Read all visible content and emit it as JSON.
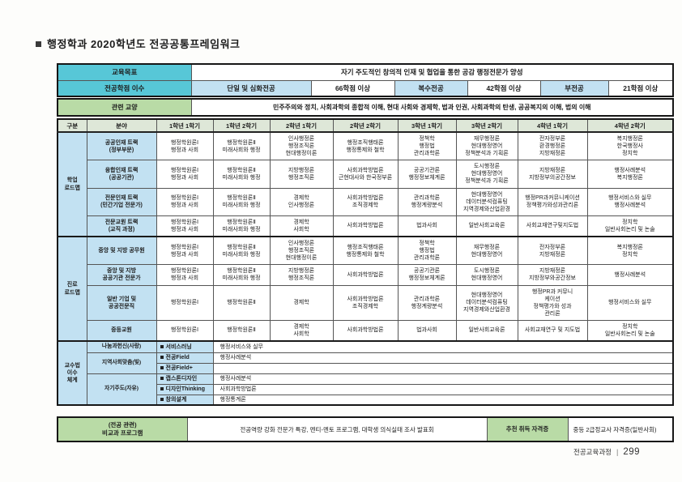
{
  "title": "행정학과 2020학년도 전공공통프레임워크",
  "colors": {
    "cyan": "#57c7d7",
    "light_blue": "#c2e1f2",
    "light_green": "#b9dba6",
    "header_green": "#dee7d8"
  },
  "goal": {
    "objective_label": "교육목표",
    "objective_value": "자기 주도적인 창의적 인재 및 협업을 통한 공감 행정전문가 양성",
    "credits_label": "전공학점 이수",
    "credit_cells": [
      {
        "label": "단일 및 심화전공",
        "value": "66학점 이상"
      },
      {
        "label": "복수전공",
        "value": "42학점 이상"
      },
      {
        "label": "부전공",
        "value": "21학점 이상"
      }
    ]
  },
  "related": {
    "label": "관련 교양",
    "value": "민주주의와 정치, 사회과학의 종합적 이해, 현대 사회와 경제학, 법과 인권, 사회과학의 탄생, 공공복지의 이해, 법의 이해"
  },
  "matrix": {
    "headers": [
      "구분",
      "분야",
      "1학년 1학기",
      "1학년 2학기",
      "2학년 1학기",
      "2학년 2학기",
      "3학년 1학기",
      "3학년 2학기",
      "4학년 1학기",
      "4학년 2학기"
    ],
    "sections": [
      {
        "group": [
          "학업",
          "로드맵"
        ],
        "rows": [
          {
            "field": [
              "공공인재 트랙",
              "(정부부문)"
            ],
            "cells": [
              [
                "행정학원론Ⅰ",
                "행정과 사회"
              ],
              [
                "행정학원론Ⅱ",
                "미래사회와 행정"
              ],
              [
                "인사행정론",
                "행정조직론",
                "현대행정이론"
              ],
              [
                "행정조직행태론",
                "행정통제와 철학"
              ],
              [
                "정책학",
                "행정법",
                "관리과학론"
              ],
              [
                "재무행정론",
                "현대행정영어",
                "정책분석과 기획론"
              ],
              [
                "전자정부론",
                "환경행정론",
                "지방재정론"
              ],
              [
                "복지행정론",
                "한국행정사",
                "정치학"
              ]
            ]
          },
          {
            "field": [
              "융합인재 트랙",
              "(공공기관)"
            ],
            "cells": [
              [
                "행정학원론Ⅰ",
                "행정과 사회"
              ],
              [
                "행정학원론Ⅱ",
                "미래사회와 행정"
              ],
              [
                "지방행정론",
                "행정조직론"
              ],
              [
                "사회과학방법론",
                "근현대사와 한국정부론"
              ],
              [
                "공공기관론",
                "행정정보체계론"
              ],
              [
                "도시행정론",
                "현대행정영어",
                "정책분석과 기획론"
              ],
              [
                "지방재정론",
                "지방정부의공간정보"
              ],
              [
                "행정사례분석",
                "복지행정론"
              ]
            ]
          },
          {
            "field": [
              "전문인재 트랙",
              "(민간기업 전문가)"
            ],
            "cells": [
              [
                "행정학원론Ⅰ",
                "행정과 사회"
              ],
              [
                "행정학원론Ⅱ",
                "미래사회와 행정"
              ],
              [
                "경제학",
                "인사행정론"
              ],
              [
                "사회과학방법론",
                "조직경제학"
              ],
              [
                "관리과학론",
                "행정계량분석"
              ],
              [
                "현대행정영어",
                "데이터분석컴퓨팅",
                "지역경제와산업환경"
              ],
              [
                "행정PR과커뮤니케이션",
                "정책평가와성과관리론"
              ],
              [
                "행정서비스와 실무",
                "행정사례분석"
              ]
            ]
          },
          {
            "field": [
              "전문교원 트랙",
              "(교직 과정)"
            ],
            "cells": [
              [
                "행정학원론Ⅰ",
                "행정과 사회"
              ],
              [
                "행정학원론Ⅱ",
                "미래사회와 행정"
              ],
              [
                "경제학",
                "사회학"
              ],
              [
                "사회과학방법론"
              ],
              [
                "법과사회"
              ],
              [
                "일반사회교육론"
              ],
              [
                "사회교재연구및지도법"
              ],
              [
                "정치학",
                "일반사회논리 및 논술"
              ]
            ]
          }
        ]
      },
      {
        "group": [
          "진로",
          "로드맵"
        ],
        "rows": [
          {
            "field": [
              "중앙 및 지방 공무원"
            ],
            "cells": [
              [
                "행정학원론Ⅰ",
                "행정과 사회"
              ],
              [
                "행정학원론Ⅱ",
                "미래사회와 행정"
              ],
              [
                "인사행정론",
                "행정조직론",
                "현대행정이론"
              ],
              [
                "행정조직행태론",
                "행정통제와 철학"
              ],
              [
                "정책학",
                "행정법",
                "관리과학론"
              ],
              [
                "재무행정론",
                "현대행정영어"
              ],
              [
                "전자정부론",
                "지방재정론"
              ],
              [
                "복지행정론",
                "정치학"
              ]
            ]
          },
          {
            "field": [
              "중앙 및 지방",
              "공공기관 전문가"
            ],
            "cells": [
              [
                "행정학원론Ⅰ",
                "행정과 사회"
              ],
              [
                "행정학원론Ⅱ",
                "미래사회와 행정"
              ],
              [
                "지방행정론",
                "행정조직론"
              ],
              [
                "사회과학방법론"
              ],
              [
                "공공기관론",
                "행정정보체계론"
              ],
              [
                "도시행정론",
                "현대행정영어"
              ],
              [
                "지방재정론",
                "지방정부와공간정보"
              ],
              [
                "행정사례분석"
              ]
            ]
          },
          {
            "field": [
              "일반 기업 및",
              "공공전문직"
            ],
            "cells": [
              [
                "행정학원론Ⅰ"
              ],
              [
                "행정학원론Ⅱ"
              ],
              [
                "경제학"
              ],
              [
                "사회과학방법론",
                "조직경제학"
              ],
              [
                "관리과학론",
                "행정계량분석"
              ],
              [
                "현대행정영어",
                "데이터분석컴퓨팅",
                "지역경제와산업환경"
              ],
              [
                "행정PR과 커뮤니",
                "케이션",
                "정책평가와 성과",
                "관리론"
              ],
              [
                "행정서비스와 실무"
              ]
            ]
          },
          {
            "field": [
              "중등교원"
            ],
            "cells": [
              [
                "행정학원론Ⅰ"
              ],
              [
                "행정학원론Ⅱ"
              ],
              [
                "경제학",
                "사회학"
              ],
              [
                "사회과학방법론"
              ],
              [
                "법과사회"
              ],
              [
                "일반사회교육론"
              ],
              [
                "사회교재연구 및 지도법"
              ],
              [
                "정치학",
                "일반사회논리 및 논술"
              ]
            ]
          }
        ]
      }
    ],
    "teaching": {
      "group": [
        "교수법",
        "이수",
        "체계"
      ],
      "rows": [
        {
          "field": "나눔과헌신(사랑)",
          "field_rowspan": 1,
          "item": "서비스러닝",
          "value": "행정서비스와 실무"
        },
        {
          "field": "지역사회맞춤(빛)",
          "field_rowspan": 2,
          "item": "전공Field",
          "value": "행정사례분석"
        },
        {
          "item": "전공Field+",
          "value": ""
        },
        {
          "field": "자기주도(자유)",
          "field_rowspan": 3,
          "item": "캡스톤디자인",
          "value": "행정사례분석"
        },
        {
          "item": "디자인Thinking",
          "value": "사회과학방법론"
        },
        {
          "item": "창의설계",
          "value": "행정통계론"
        }
      ]
    }
  },
  "extracurricular": {
    "label": [
      "(전공 관련)",
      "비교과 프로그램"
    ],
    "value": "전공역량 강화 전문가 특강, 멘티-멘토 프로그램, 대학생 의식실태 조사 발표회",
    "cert_label": "추천 취득 자격증",
    "cert_value": "중등 2급정교사 자격증(일반사회)"
  },
  "footer": {
    "label": "전공교육과정",
    "page": "299"
  }
}
